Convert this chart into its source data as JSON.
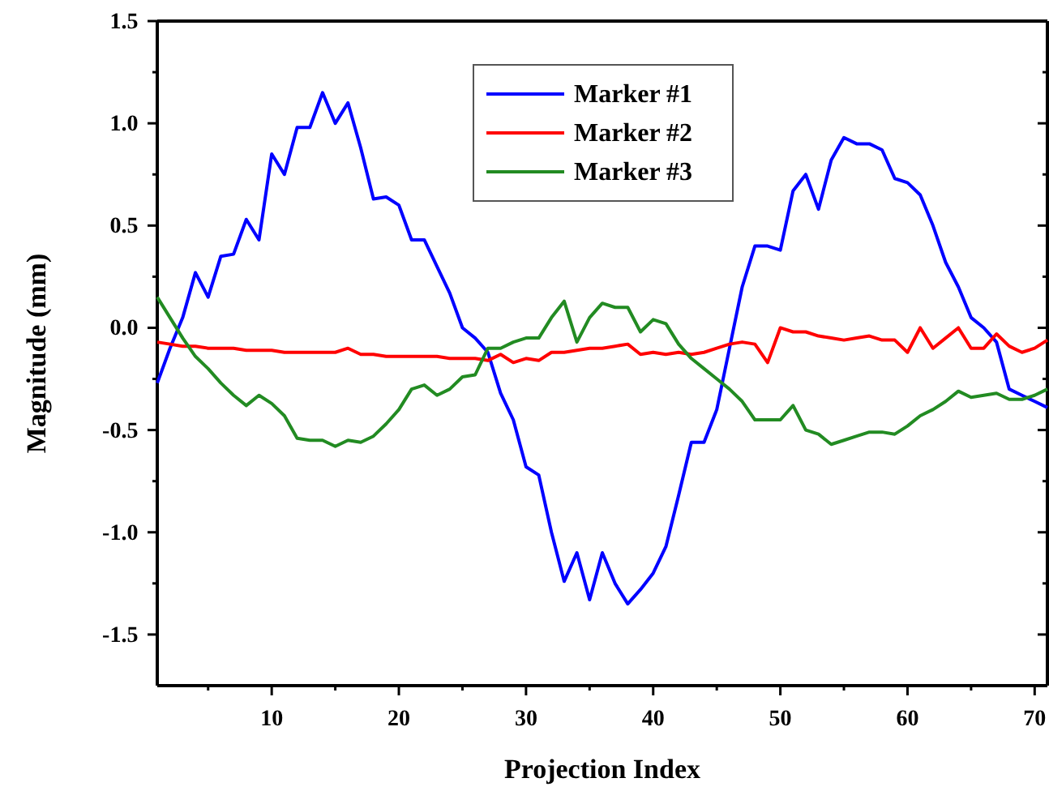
{
  "chart_data": {
    "type": "line",
    "xlabel": "Projection Index",
    "ylabel": "Magnitude (mm)",
    "x": [
      1,
      2,
      3,
      4,
      5,
      6,
      7,
      8,
      9,
      10,
      11,
      12,
      13,
      14,
      15,
      16,
      17,
      18,
      19,
      20,
      21,
      22,
      23,
      24,
      25,
      26,
      27,
      28,
      29,
      30,
      31,
      32,
      33,
      34,
      35,
      36,
      37,
      38,
      39,
      40,
      41,
      42,
      43,
      44,
      45,
      46,
      47,
      48,
      49,
      50,
      51,
      52,
      53,
      54,
      55,
      56,
      57,
      58,
      59,
      60,
      61,
      62,
      63,
      64,
      65,
      66,
      67,
      68,
      69,
      70,
      71
    ],
    "series": [
      {
        "name": "Marker #1",
        "color": "#0000ff",
        "values": [
          -0.27,
          -0.1,
          0.05,
          0.27,
          0.15,
          0.35,
          0.36,
          0.53,
          0.43,
          0.85,
          0.75,
          0.98,
          0.98,
          1.15,
          1.0,
          1.1,
          0.88,
          0.63,
          0.64,
          0.6,
          0.43,
          0.43,
          0.3,
          0.17,
          0.0,
          -0.05,
          -0.12,
          -0.32,
          -0.45,
          -0.68,
          -0.72,
          -1.0,
          -1.24,
          -1.1,
          -1.33,
          -1.1,
          -1.25,
          -1.35,
          -1.28,
          -1.2,
          -1.07,
          -0.82,
          -0.56,
          -0.56,
          -0.4,
          -0.1,
          0.2,
          0.4,
          0.4,
          0.38,
          0.67,
          0.75,
          0.58,
          0.82,
          0.93,
          0.9,
          0.9,
          0.87,
          0.73,
          0.71,
          0.65,
          0.5,
          0.32,
          0.2,
          0.05,
          0.0,
          -0.07,
          -0.3,
          -0.33,
          -0.36,
          -0.39
        ]
      },
      {
        "name": "Marker #2",
        "color": "#ff0000",
        "values": [
          -0.07,
          -0.08,
          -0.09,
          -0.09,
          -0.1,
          -0.1,
          -0.1,
          -0.11,
          -0.11,
          -0.11,
          -0.12,
          -0.12,
          -0.12,
          -0.12,
          -0.12,
          -0.1,
          -0.13,
          -0.13,
          -0.14,
          -0.14,
          -0.14,
          -0.14,
          -0.14,
          -0.15,
          -0.15,
          -0.15,
          -0.16,
          -0.13,
          -0.17,
          -0.15,
          -0.16,
          -0.12,
          -0.12,
          -0.11,
          -0.1,
          -0.1,
          -0.09,
          -0.08,
          -0.13,
          -0.12,
          -0.13,
          -0.12,
          -0.13,
          -0.12,
          -0.1,
          -0.08,
          -0.07,
          -0.08,
          -0.17,
          0.0,
          -0.02,
          -0.02,
          -0.04,
          -0.05,
          -0.06,
          -0.05,
          -0.04,
          -0.06,
          -0.06,
          -0.12,
          0.0,
          -0.1,
          -0.05,
          0.0,
          -0.1,
          -0.1,
          -0.03,
          -0.09,
          -0.12,
          -0.1,
          -0.06
        ]
      },
      {
        "name": "Marker #3",
        "color": "#228b22",
        "values": [
          0.15,
          0.05,
          -0.05,
          -0.14,
          -0.2,
          -0.27,
          -0.33,
          -0.38,
          -0.33,
          -0.37,
          -0.43,
          -0.54,
          -0.55,
          -0.55,
          -0.58,
          -0.55,
          -0.56,
          -0.53,
          -0.47,
          -0.4,
          -0.3,
          -0.28,
          -0.33,
          -0.3,
          -0.24,
          -0.23,
          -0.1,
          -0.1,
          -0.07,
          -0.05,
          -0.05,
          0.05,
          0.13,
          -0.07,
          0.05,
          0.12,
          0.1,
          0.1,
          -0.02,
          0.04,
          0.02,
          -0.08,
          -0.15,
          -0.2,
          -0.25,
          -0.3,
          -0.36,
          -0.45,
          -0.45,
          -0.45,
          -0.38,
          -0.5,
          -0.52,
          -0.57,
          -0.55,
          -0.53,
          -0.51,
          -0.51,
          -0.52,
          -0.48,
          -0.43,
          -0.4,
          -0.36,
          -0.31,
          -0.34,
          -0.33,
          -0.32,
          -0.35,
          -0.35,
          -0.33,
          -0.3
        ]
      }
    ],
    "xlim": [
      1,
      71
    ],
    "ylim": [
      -1.75,
      1.5
    ],
    "xticks": [
      {
        "value": 5,
        "label": null
      },
      10,
      {
        "value": 15,
        "label": null
      },
      20,
      {
        "value": 25,
        "label": null
      },
      30,
      {
        "value": 35,
        "label": null
      },
      40,
      {
        "value": 45,
        "label": null
      },
      50,
      {
        "value": 55,
        "label": null
      },
      60,
      {
        "value": 65,
        "label": null
      },
      70
    ],
    "yticks": [
      {
        "value": -1.5,
        "label": "-1.5"
      },
      {
        "value": -1.25,
        "label": null
      },
      {
        "value": -1.0,
        "label": "-1.0"
      },
      {
        "value": -0.75,
        "label": null
      },
      {
        "value": -0.5,
        "label": "-0.5"
      },
      {
        "value": -0.25,
        "label": null
      },
      {
        "value": 0,
        "label": "0.0"
      },
      {
        "value": 0.25,
        "label": null
      },
      {
        "value": 0.5,
        "label": "0.5"
      },
      {
        "value": 0.75,
        "label": null
      },
      {
        "value": 1.0,
        "label": "1.0"
      },
      {
        "value": 1.25,
        "label": null
      },
      {
        "value": 1.5,
        "label": "1.5"
      }
    ],
    "grid": false,
    "legend": "top",
    "line_style": "solid",
    "marker": "none"
  }
}
